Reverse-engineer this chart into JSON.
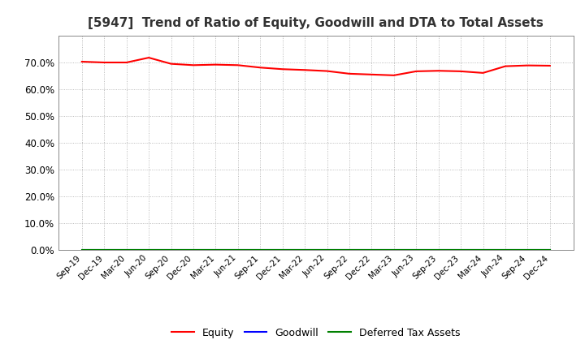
{
  "title": "[5947]  Trend of Ratio of Equity, Goodwill and DTA to Total Assets",
  "x_labels": [
    "Sep-19",
    "Dec-19",
    "Mar-20",
    "Jun-20",
    "Sep-20",
    "Dec-20",
    "Mar-21",
    "Jun-21",
    "Sep-21",
    "Dec-21",
    "Mar-22",
    "Jun-22",
    "Sep-22",
    "Dec-22",
    "Mar-23",
    "Jun-23",
    "Sep-23",
    "Dec-23",
    "Mar-24",
    "Jun-24",
    "Sep-24",
    "Dec-24"
  ],
  "equity": [
    0.703,
    0.7,
    0.7,
    0.718,
    0.695,
    0.69,
    0.692,
    0.69,
    0.681,
    0.675,
    0.672,
    0.668,
    0.658,
    0.655,
    0.652,
    0.667,
    0.669,
    0.667,
    0.661,
    0.686,
    0.689,
    0.688
  ],
  "goodwill": [
    0.0,
    0.0,
    0.0,
    0.0,
    0.0,
    0.0,
    0.0,
    0.0,
    0.0,
    0.0,
    0.0,
    0.0,
    0.0,
    0.0,
    0.0,
    0.0,
    0.0,
    0.0,
    0.0,
    0.0,
    0.0,
    0.0
  ],
  "dta": [
    0.0,
    0.0,
    0.0,
    0.0,
    0.0,
    0.0,
    0.0,
    0.0,
    0.0,
    0.0,
    0.0,
    0.0,
    0.0,
    0.0,
    0.0,
    0.0,
    0.0,
    0.0,
    0.0,
    0.0,
    0.0,
    0.0
  ],
  "equity_color": "#ff0000",
  "goodwill_color": "#0000ff",
  "dta_color": "#008000",
  "ylim": [
    0.0,
    0.8
  ],
  "yticks": [
    0.0,
    0.1,
    0.2,
    0.3,
    0.4,
    0.5,
    0.6,
    0.7
  ],
  "background_color": "#ffffff",
  "grid_color": "#aaaaaa",
  "title_fontsize": 11,
  "legend_labels": [
    "Equity",
    "Goodwill",
    "Deferred Tax Assets"
  ]
}
